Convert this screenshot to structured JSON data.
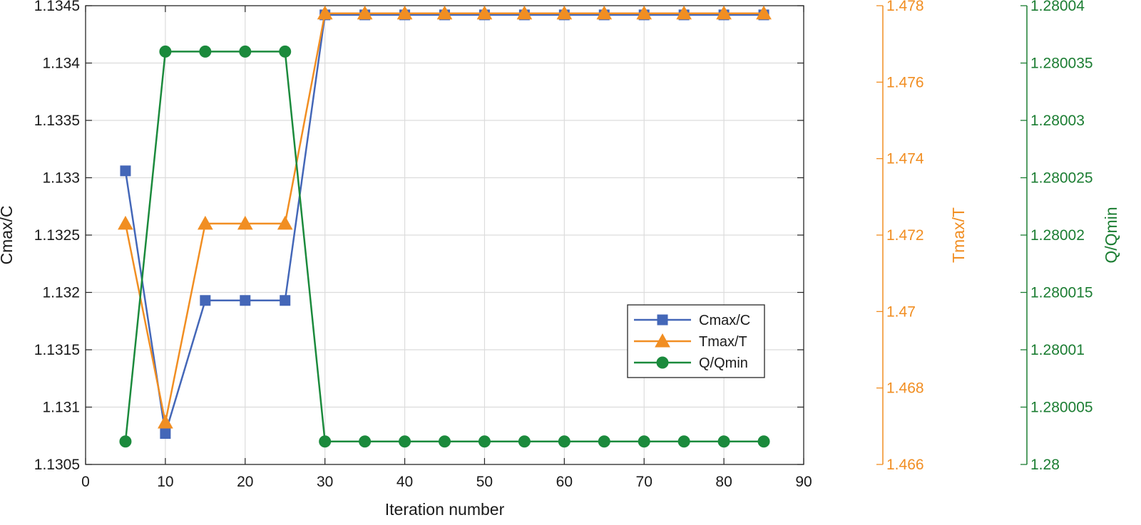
{
  "chart_data": {
    "type": "line",
    "title": "",
    "xlabel": "Iteration number",
    "x": [
      5,
      10,
      15,
      20,
      25,
      30,
      35,
      40,
      45,
      50,
      55,
      60,
      65,
      70,
      75,
      80,
      85
    ],
    "xlim": [
      0,
      90
    ],
    "xticks": [
      "0",
      "10",
      "20",
      "30",
      "40",
      "50",
      "60",
      "70",
      "80",
      "90"
    ],
    "grid": true,
    "legend_position": "center-right",
    "axes": {
      "left": {
        "label": "Cmax/C",
        "ylim": [
          1.1305,
          1.1345
        ],
        "ticks": [
          "1.1305",
          "1.131",
          "1.1315",
          "1.132",
          "1.1325",
          "1.133",
          "1.1335",
          "1.134",
          "1.1345"
        ],
        "color": "#1a1a1a"
      },
      "right1": {
        "label": "Tmax/T",
        "ylim": [
          1.466,
          1.478
        ],
        "ticks": [
          "1.466",
          "1.468",
          "1.47",
          "1.472",
          "1.474",
          "1.476",
          "1.478"
        ],
        "color": "#f18e22"
      },
      "right2": {
        "label": "Q/Qmin",
        "ylim": [
          1.28,
          1.28004
        ],
        "ticks": [
          "1.28",
          "1.280005",
          "1.28001",
          "1.280015",
          "1.28002",
          "1.280025",
          "1.28003",
          "1.280035",
          "1.28004"
        ],
        "color": "#1b7d32"
      }
    },
    "series": [
      {
        "name": "Cmax/C",
        "axis": "left",
        "marker": "square",
        "color": "#4467b8",
        "values": [
          1.13306,
          1.13077,
          1.13193,
          1.13193,
          1.13193,
          1.13442,
          1.13442,
          1.13442,
          1.13442,
          1.13442,
          1.13442,
          1.13442,
          1.13442,
          1.13442,
          1.13442,
          1.13442,
          1.13442
        ]
      },
      {
        "name": "Tmax/T",
        "axis": "right1",
        "marker": "triangle",
        "color": "#f18e22",
        "values": [
          1.4723,
          1.4671,
          1.4723,
          1.4723,
          1.4723,
          1.4778,
          1.4778,
          1.4778,
          1.4778,
          1.4778,
          1.4778,
          1.4778,
          1.4778,
          1.4778,
          1.4778,
          1.4778,
          1.4778
        ]
      },
      {
        "name": "Q/Qmin",
        "axis": "right2",
        "marker": "circle",
        "color": "#1b8a3c",
        "values": [
          1.280002,
          1.280036,
          1.280036,
          1.280036,
          1.280036,
          1.280002,
          1.280002,
          1.280002,
          1.280002,
          1.280002,
          1.280002,
          1.280002,
          1.280002,
          1.280002,
          1.280002,
          1.280002,
          1.280002
        ]
      }
    ]
  }
}
